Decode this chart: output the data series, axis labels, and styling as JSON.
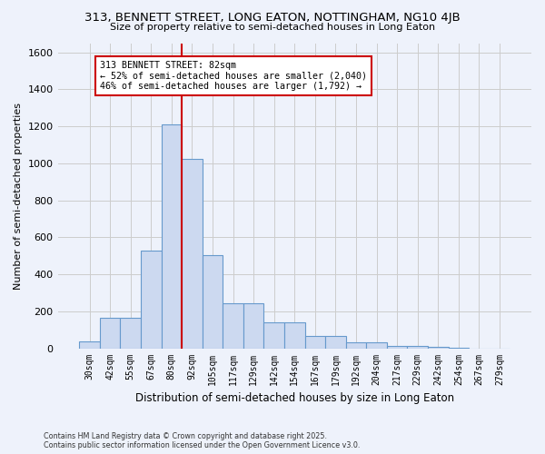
{
  "title_line1": "313, BENNETT STREET, LONG EATON, NOTTINGHAM, NG10 4JB",
  "title_line2": "Size of property relative to semi-detached houses in Long Eaton",
  "xlabel": "Distribution of semi-detached houses by size in Long Eaton",
  "ylabel": "Number of semi-detached properties",
  "categories": [
    "30sqm",
    "42sqm",
    "55sqm",
    "67sqm",
    "80sqm",
    "92sqm",
    "105sqm",
    "117sqm",
    "129sqm",
    "142sqm",
    "154sqm",
    "167sqm",
    "179sqm",
    "192sqm",
    "204sqm",
    "217sqm",
    "229sqm",
    "242sqm",
    "254sqm",
    "267sqm",
    "279sqm"
  ],
  "values": [
    35,
    165,
    165,
    530,
    1210,
    1025,
    505,
    245,
    245,
    140,
    140,
    65,
    65,
    30,
    30,
    15,
    15,
    10,
    5,
    0,
    0
  ],
  "bar_color": "#ccd9f0",
  "bar_edge_color": "#6699cc",
  "vline_index": 4,
  "annotation_text_line1": "313 BENNETT STREET: 82sqm",
  "annotation_text_line2": "← 52% of semi-detached houses are smaller (2,040)",
  "annotation_text_line3": "46% of semi-detached houses are larger (1,792) →",
  "vline_color": "#cc0000",
  "annotation_box_color": "#ffffff",
  "annotation_box_edge": "#cc0000",
  "ylim": [
    0,
    1650
  ],
  "yticks": [
    0,
    200,
    400,
    600,
    800,
    1000,
    1200,
    1400,
    1600
  ],
  "grid_color": "#cccccc",
  "background_color": "#eef2fb",
  "footer_line1": "Contains HM Land Registry data © Crown copyright and database right 2025.",
  "footer_line2": "Contains public sector information licensed under the Open Government Licence v3.0.",
  "fig_width": 6.0,
  "fig_height": 5.0
}
